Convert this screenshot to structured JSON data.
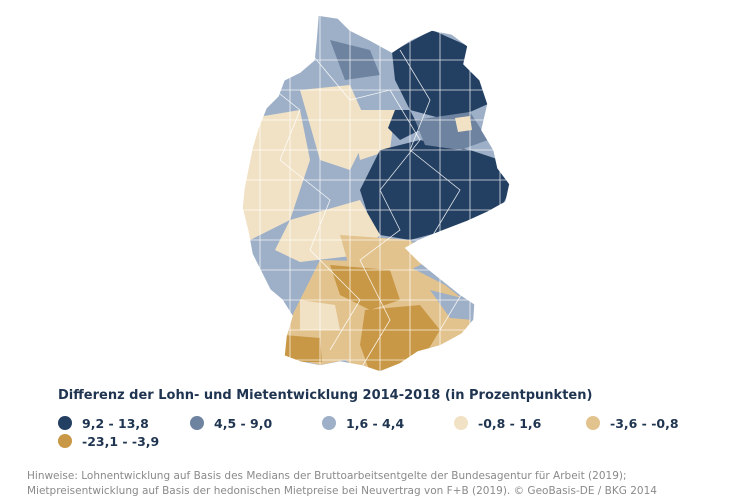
{
  "legend": {
    "title": "Differenz der Lohn- und Mietentwicklung 2014-2018 (in Prozentpunkten)",
    "classes": [
      {
        "label": "9,2 - 13,8",
        "color": "#233f62"
      },
      {
        "label": "4,5 - 9,0",
        "color": "#6d83a0"
      },
      {
        "label": "1,6 - 4,4",
        "color": "#9eb0c7"
      },
      {
        "label": "-0,8 - 1,6",
        "color": "#f1e2c6"
      },
      {
        "label": "-3,6 - -0,8",
        "color": "#e2c38e"
      },
      {
        "label": "-23,1 - -3,9",
        "color": "#c99846"
      }
    ]
  },
  "notes": [
    "Hinweise: Lohnentwicklung auf Basis des Medians der Bruttoarbeitsentgelte der Bundesagentur für Arbeit (2019);",
    "Mietpreisentwicklung auf Basis der hedonischen Mietpreise bei Neuvertrag von F+B (2019). © GeoBasis-DE / BKG 2014"
  ],
  "map": {
    "region_colors": {
      "dark_blue": "#233f62",
      "mid_blue": "#6d83a0",
      "light_blue": "#9eb0c7",
      "cream": "#f1e2c6",
      "tan": "#e2c38e",
      "gold": "#c99846"
    }
  }
}
